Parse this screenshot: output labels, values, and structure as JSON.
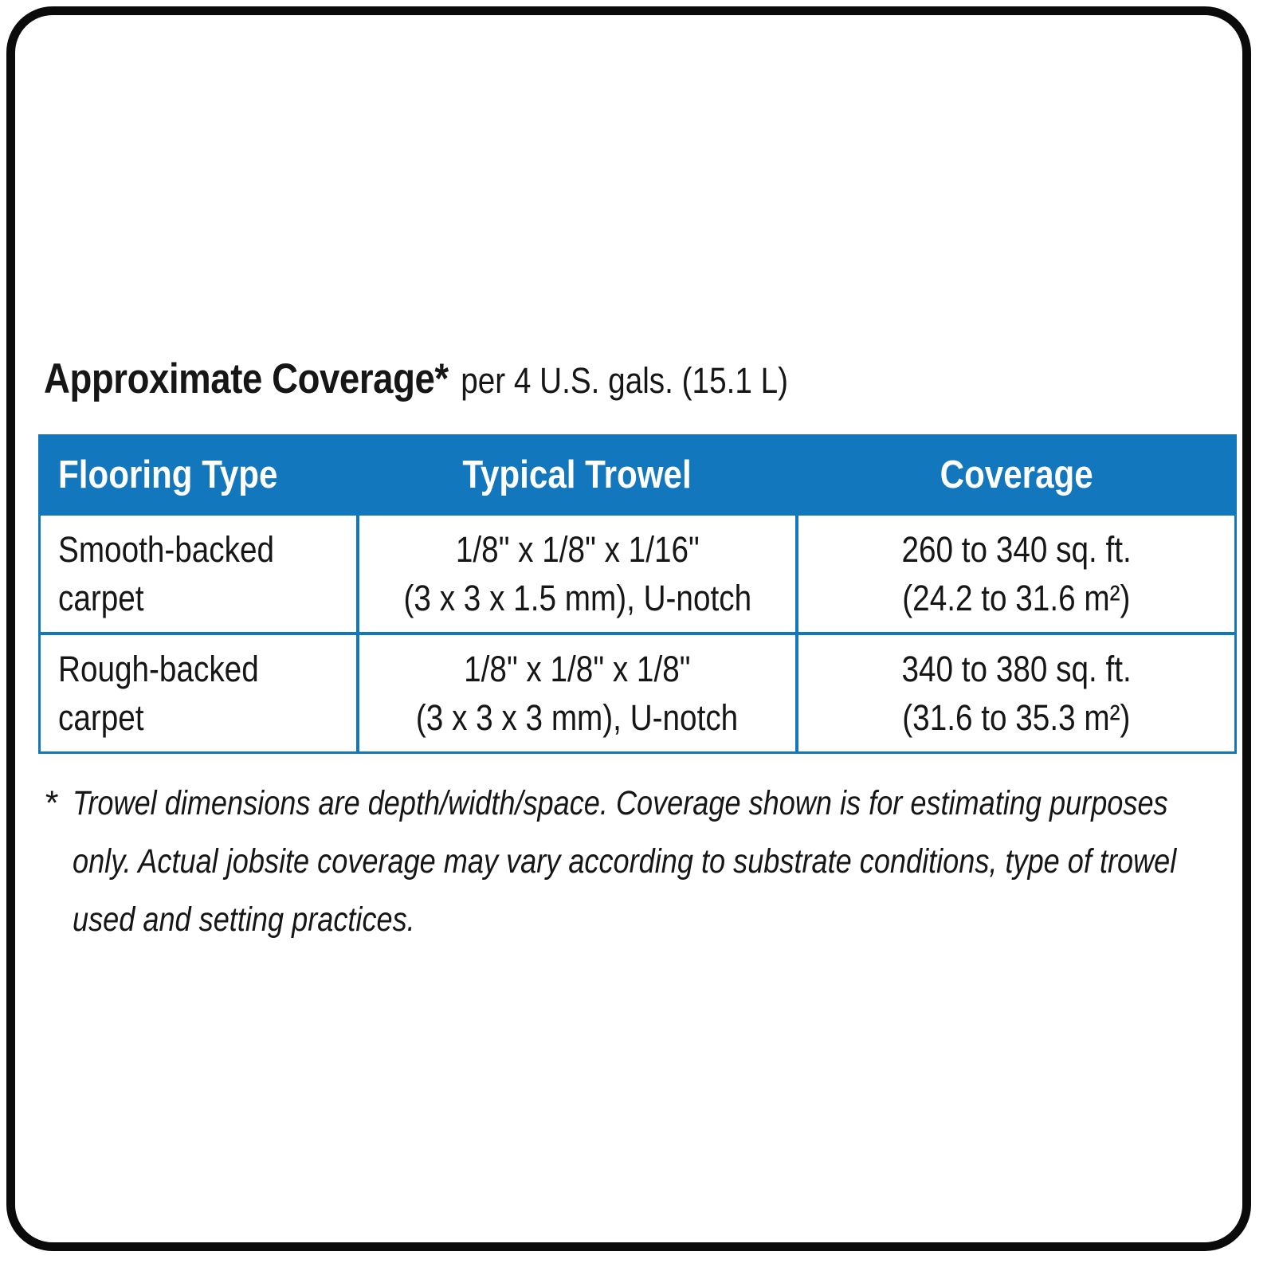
{
  "accent_color": "#1277bd",
  "frame_color": "#0b0b0b",
  "title": {
    "main": "Approximate Coverage*",
    "suffix": "per 4 U.S. gals. (15.1 L)"
  },
  "table": {
    "headers": [
      "Flooring Type",
      "Typical Trowel",
      "Coverage"
    ],
    "rows": [
      {
        "flooring_lines": [
          "Smooth-backed",
          "carpet"
        ],
        "trowel_lines": [
          "1/8\" x 1/8\" x 1/16\"",
          "(3 x 3 x 1.5 mm), U-notch"
        ],
        "coverage_lines": [
          "260 to 340 sq. ft.",
          "(24.2 to 31.6 m²)"
        ]
      },
      {
        "flooring_lines": [
          "Rough-backed",
          "carpet"
        ],
        "trowel_lines": [
          "1/8\" x 1/8\" x 1/8\"",
          "(3 x 3 x 3 mm), U-notch"
        ],
        "coverage_lines": [
          "340 to 380 sq. ft.",
          "(31.6 to 35.3 m²)"
        ]
      }
    ]
  },
  "footnote": {
    "marker": "*",
    "lines": [
      "Trowel dimensions are depth/width/space. Coverage shown is for estimating purposes",
      "only. Actual jobsite coverage may vary according to substrate conditions, type of trowel",
      "used and setting practices."
    ]
  }
}
